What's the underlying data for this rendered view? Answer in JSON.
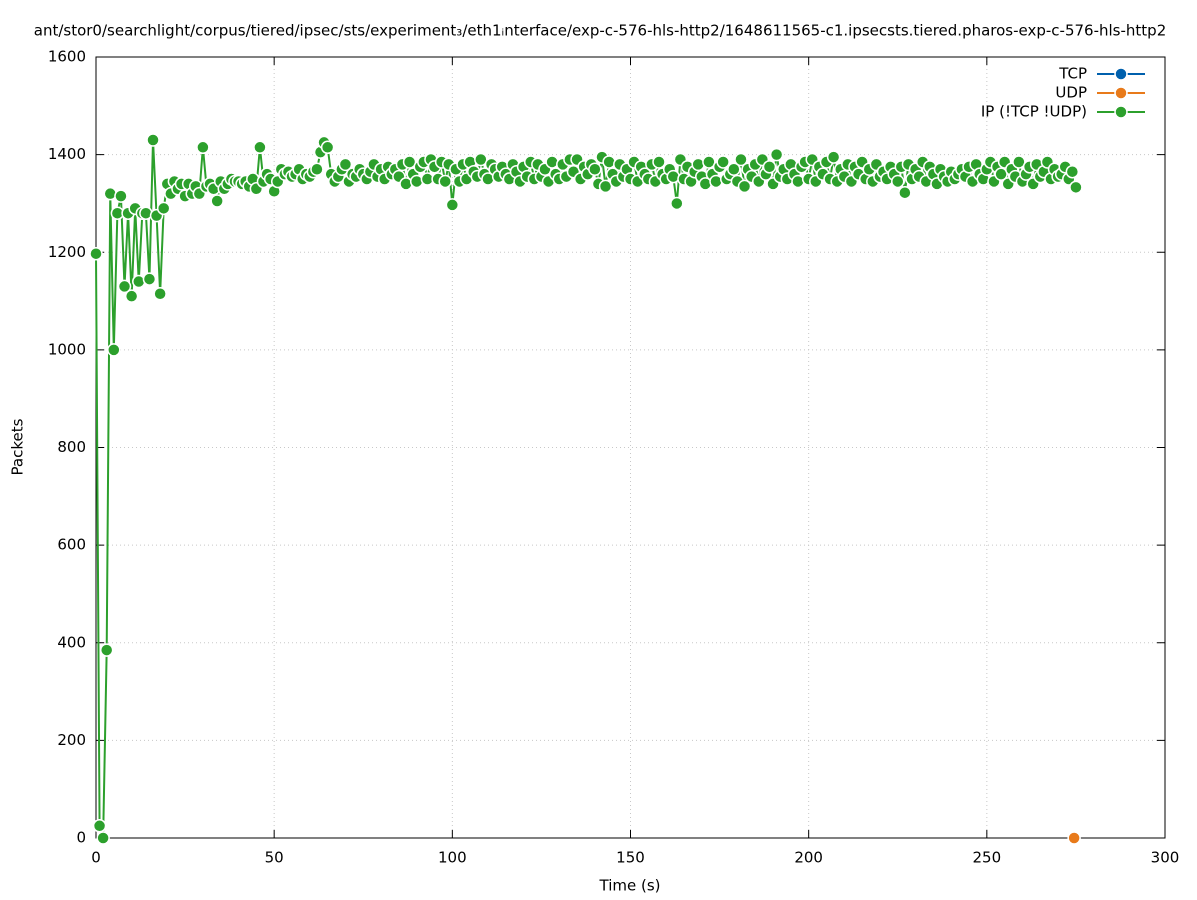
{
  "chart_data": {
    "type": "line",
    "title": "ant/stor0/searchlight/corpus/tiered/ipsec/sts/experiment₃/eth1ᵢnterface/exp-c-576-hls-http2/1648611565-c1.ipsecsts.tiered.pharos-exp-c-576-hls-http2",
    "xlabel": "Time (s)",
    "ylabel": "Packets",
    "xlim": [
      0,
      300
    ],
    "xticks": [
      0,
      50,
      100,
      150,
      200,
      250,
      300
    ],
    "ylim": [
      0,
      1600
    ],
    "yticks": [
      0,
      200,
      400,
      600,
      800,
      1000,
      1200,
      1400,
      1600
    ],
    "grid": true,
    "legend": "top-right",
    "series": [
      {
        "name": "TCP",
        "color": "#0060ad",
        "x": [],
        "values": []
      },
      {
        "name": "UDP",
        "color": "#e87a1a",
        "x": [
          274.5
        ],
        "values": [
          0
        ]
      },
      {
        "name": "IP (!TCP  !UDP)",
        "color": "#2ca02c",
        "x": [
          0,
          1,
          2,
          3,
          4,
          5,
          6,
          7,
          8,
          9,
          10,
          11,
          12,
          13,
          14,
          15,
          16,
          17,
          18,
          19,
          20,
          21,
          22,
          23,
          24,
          25,
          26,
          27,
          28,
          29,
          30,
          31,
          32,
          33,
          34,
          35,
          36,
          37,
          38,
          39,
          40,
          41,
          42,
          43,
          44,
          45,
          46,
          47,
          48,
          49,
          50,
          51,
          52,
          53,
          54,
          55,
          56,
          57,
          58,
          59,
          60,
          61,
          62,
          63,
          64,
          65,
          66,
          67,
          68,
          69,
          70,
          71,
          72,
          73,
          74,
          75,
          76,
          77,
          78,
          79,
          80,
          81,
          82,
          83,
          84,
          85,
          86,
          87,
          88,
          89,
          90,
          91,
          92,
          93,
          94,
          95,
          96,
          97,
          98,
          99,
          100,
          101,
          102,
          103,
          104,
          105,
          106,
          107,
          108,
          109,
          110,
          111,
          112,
          113,
          114,
          115,
          116,
          117,
          118,
          119,
          120,
          121,
          122,
          123,
          124,
          125,
          126,
          127,
          128,
          129,
          130,
          131,
          132,
          133,
          134,
          135,
          136,
          137,
          138,
          139,
          140,
          141,
          142,
          143,
          144,
          145,
          146,
          147,
          148,
          149,
          150,
          151,
          152,
          153,
          154,
          155,
          156,
          157,
          158,
          159,
          160,
          161,
          162,
          163,
          164,
          165,
          166,
          167,
          168,
          169,
          170,
          171,
          172,
          173,
          174,
          175,
          176,
          177,
          178,
          179,
          180,
          181,
          182,
          183,
          184,
          185,
          186,
          187,
          188,
          189,
          190,
          191,
          192,
          193,
          194,
          195,
          196,
          197,
          198,
          199,
          200,
          201,
          202,
          203,
          204,
          205,
          206,
          207,
          208,
          209,
          210,
          211,
          212,
          213,
          214,
          215,
          216,
          217,
          218,
          219,
          220,
          221,
          222,
          223,
          224,
          225,
          226,
          227,
          228,
          229,
          230,
          231,
          232,
          233,
          234,
          235,
          236,
          237,
          238,
          239,
          240,
          241,
          242,
          243,
          244,
          245,
          246,
          247,
          248,
          249,
          250,
          251,
          252,
          253,
          254,
          255,
          256,
          257,
          258,
          259,
          260,
          261,
          262,
          263,
          264,
          265,
          266,
          267,
          268,
          269,
          270,
          271,
          272,
          273,
          274,
          275
        ],
        "values": [
          1197,
          25,
          0,
          385,
          1320,
          1000,
          1280,
          1315,
          1130,
          1280,
          1110,
          1290,
          1140,
          1280,
          1280,
          1145,
          1430,
          1275,
          1115,
          1290,
          1340,
          1320,
          1345,
          1330,
          1340,
          1315,
          1340,
          1320,
          1335,
          1320,
          1415,
          1335,
          1340,
          1330,
          1305,
          1345,
          1330,
          1340,
          1350,
          1345,
          1345,
          1340,
          1345,
          1335,
          1350,
          1330,
          1415,
          1345,
          1360,
          1350,
          1325,
          1345,
          1370,
          1360,
          1365,
          1355,
          1360,
          1370,
          1350,
          1360,
          1355,
          1365,
          1370,
          1405,
          1425,
          1415,
          1360,
          1345,
          1355,
          1370,
          1380,
          1345,
          1360,
          1355,
          1370,
          1360,
          1350,
          1365,
          1380,
          1355,
          1370,
          1350,
          1375,
          1360,
          1370,
          1355,
          1380,
          1340,
          1385,
          1360,
          1345,
          1375,
          1385,
          1350,
          1390,
          1375,
          1350,
          1385,
          1345,
          1380,
          1297,
          1370,
          1345,
          1380,
          1350,
          1385,
          1365,
          1355,
          1390,
          1360,
          1350,
          1380,
          1370,
          1355,
          1375,
          1360,
          1350,
          1380,
          1365,
          1345,
          1375,
          1355,
          1385,
          1350,
          1380,
          1355,
          1370,
          1345,
          1385,
          1360,
          1350,
          1380,
          1355,
          1390,
          1365,
          1390,
          1350,
          1375,
          1360,
          1380,
          1370,
          1340,
          1395,
          1335,
          1385,
          1360,
          1345,
          1380,
          1355,
          1370,
          1350,
          1385,
          1345,
          1375,
          1360,
          1350,
          1380,
          1345,
          1385,
          1360,
          1350,
          1370,
          1355,
          1300,
          1390,
          1350,
          1375,
          1345,
          1365,
          1380,
          1355,
          1340,
          1385,
          1360,
          1345,
          1375,
          1385,
          1350,
          1360,
          1370,
          1345,
          1390,
          1335,
          1370,
          1355,
          1380,
          1345,
          1390,
          1360,
          1375,
          1340,
          1400,
          1355,
          1370,
          1350,
          1380,
          1360,
          1345,
          1375,
          1385,
          1350,
          1390,
          1345,
          1375,
          1360,
          1385,
          1350,
          1395,
          1345,
          1370,
          1355,
          1380,
          1345,
          1375,
          1360,
          1385,
          1350,
          1370,
          1345,
          1380,
          1355,
          1365,
          1350,
          1375,
          1360,
          1345,
          1375,
          1322,
          1380,
          1350,
          1370,
          1355,
          1385,
          1345,
          1375,
          1360,
          1340,
          1370,
          1355,
          1345,
          1365,
          1350,
          1360,
          1370,
          1355,
          1375,
          1345,
          1380,
          1360,
          1350,
          1370,
          1385,
          1345,
          1375,
          1360,
          1385,
          1340,
          1370,
          1355,
          1385,
          1345,
          1360,
          1375,
          1340,
          1380,
          1355,
          1365,
          1385,
          1350,
          1370,
          1355,
          1360,
          1375,
          1350,
          1365,
          1333
        ]
      }
    ]
  }
}
